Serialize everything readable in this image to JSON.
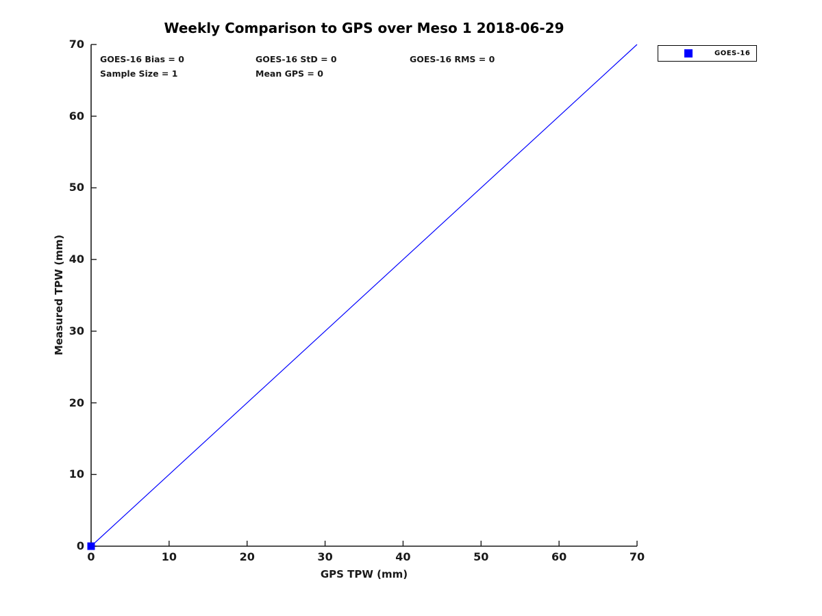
{
  "chart_data": {
    "type": "scatter",
    "title": "Weekly Comparison to GPS over Meso 1 2018-06-29",
    "xlabel": "GPS TPW (mm)",
    "ylabel": "Measured TPW (mm)",
    "xlim": [
      0,
      70
    ],
    "ylim": [
      0,
      70
    ],
    "xticks": [
      0,
      10,
      20,
      30,
      40,
      50,
      60,
      70
    ],
    "yticks": [
      0,
      10,
      20,
      30,
      40,
      50,
      60,
      70
    ],
    "grid": false,
    "box": "left-bottom-spines-only",
    "axis_color": "#1a1a1a",
    "series": [
      {
        "name": "reference-line",
        "type": "line",
        "color": "#0000ff",
        "points": [
          [
            0,
            0
          ],
          [
            70,
            70
          ]
        ]
      },
      {
        "name": "GOES-16",
        "type": "scatter",
        "marker": "square",
        "color": "#0000ff",
        "points": [
          [
            0,
            0
          ]
        ]
      }
    ],
    "legend": {
      "position": "top-right-outside",
      "entries": [
        {
          "label": "GOES-16",
          "marker": "square",
          "color": "#0000ff"
        }
      ]
    },
    "annotations": [
      "GOES-16 Bias = 0",
      "GOES-16 StD = 0",
      "GOES-16 RMS = 0",
      "Sample Size = 1",
      "Mean GPS = 0"
    ]
  }
}
